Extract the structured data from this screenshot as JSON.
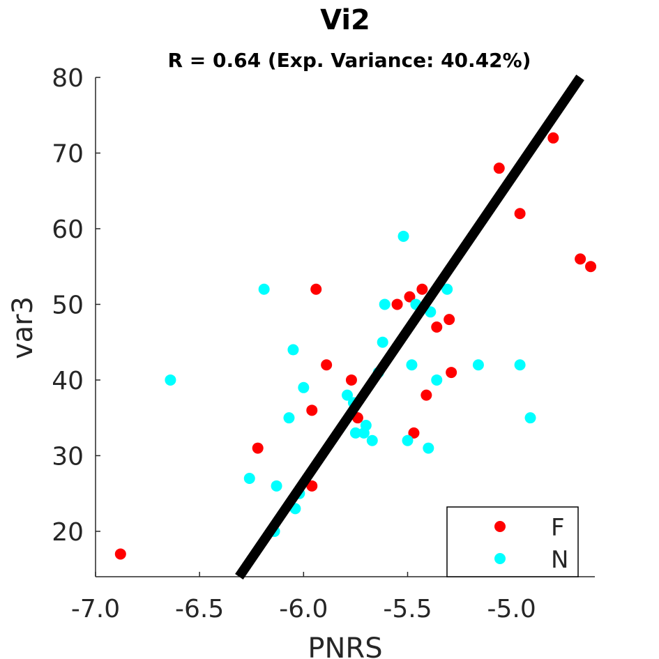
{
  "chart_data": {
    "type": "scatter",
    "title": "Vi2",
    "subtitle": "R = 0.64 (Exp. Variance: 40.42%)",
    "xlabel": "PNRS",
    "ylabel": "var3",
    "xlim": [
      -7.0,
      -4.6
    ],
    "ylim": [
      14,
      80
    ],
    "xticks": [
      -7.0,
      -6.5,
      -6.0,
      -5.5,
      -5.0
    ],
    "xtick_labels": [
      "-7.0",
      "-6.5",
      "-6.0",
      "-5.5",
      "-5.0"
    ],
    "yticks": [
      20,
      30,
      40,
      50,
      60,
      70,
      80
    ],
    "ytick_labels": [
      "20",
      "30",
      "40",
      "50",
      "60",
      "70",
      "80"
    ],
    "grid": false,
    "legend_position": "bottom-right",
    "series": [
      {
        "name": "F",
        "color": "#ff0000",
        "points": [
          [
            -6.88,
            17
          ],
          [
            -6.22,
            31
          ],
          [
            -5.96,
            26
          ],
          [
            -5.96,
            36
          ],
          [
            -5.94,
            52
          ],
          [
            -5.89,
            42
          ],
          [
            -5.77,
            40
          ],
          [
            -5.74,
            35
          ],
          [
            -5.55,
            50
          ],
          [
            -5.49,
            51
          ],
          [
            -5.47,
            33
          ],
          [
            -5.43,
            52
          ],
          [
            -5.41,
            38
          ],
          [
            -5.36,
            47
          ],
          [
            -5.3,
            48
          ],
          [
            -5.29,
            41
          ],
          [
            -5.06,
            68
          ],
          [
            -4.96,
            62
          ],
          [
            -4.8,
            72
          ],
          [
            -4.67,
            56
          ],
          [
            -4.62,
            55
          ]
        ]
      },
      {
        "name": "N",
        "color": "#00ffff",
        "points": [
          [
            -6.64,
            40
          ],
          [
            -6.26,
            27
          ],
          [
            -6.19,
            52
          ],
          [
            -6.14,
            20
          ],
          [
            -6.13,
            26
          ],
          [
            -6.07,
            35
          ],
          [
            -6.05,
            44
          ],
          [
            -6.04,
            23
          ],
          [
            -6.02,
            25
          ],
          [
            -6.0,
            39
          ],
          [
            -5.79,
            38
          ],
          [
            -5.76,
            37
          ],
          [
            -5.75,
            33
          ],
          [
            -5.71,
            33
          ],
          [
            -5.7,
            34
          ],
          [
            -5.67,
            32
          ],
          [
            -5.64,
            41
          ],
          [
            -5.62,
            45
          ],
          [
            -5.61,
            50
          ],
          [
            -5.52,
            59
          ],
          [
            -5.5,
            32
          ],
          [
            -5.48,
            42
          ],
          [
            -5.46,
            50
          ],
          [
            -5.4,
            31
          ],
          [
            -5.39,
            49
          ],
          [
            -5.36,
            40
          ],
          [
            -5.31,
            52
          ],
          [
            -5.16,
            42
          ],
          [
            -4.96,
            42
          ],
          [
            -4.91,
            35
          ]
        ]
      }
    ],
    "fit_line": {
      "color": "#000000",
      "points": [
        [
          -6.31,
          14
        ],
        [
          -4.67,
          80
        ]
      ]
    }
  }
}
